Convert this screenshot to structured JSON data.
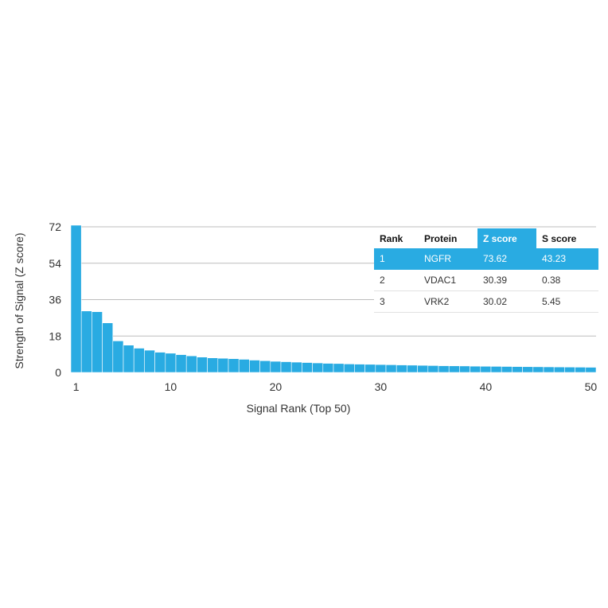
{
  "chart_data": {
    "type": "bar",
    "title": "",
    "xlabel": "Signal Rank (Top 50)",
    "ylabel": "Strength of Signal (Z score)",
    "ylim": [
      0,
      72
    ],
    "yticks": [
      0,
      18,
      36,
      54,
      72
    ],
    "xticks": [
      1,
      10,
      20,
      30,
      40,
      50
    ],
    "grid": true,
    "bar_color": "#29abe2",
    "categories": [
      1,
      2,
      3,
      4,
      5,
      6,
      7,
      8,
      9,
      10,
      11,
      12,
      13,
      14,
      15,
      16,
      17,
      18,
      19,
      20,
      21,
      22,
      23,
      24,
      25,
      26,
      27,
      28,
      29,
      30,
      31,
      32,
      33,
      34,
      35,
      36,
      37,
      38,
      39,
      40,
      41,
      42,
      43,
      44,
      45,
      46,
      47,
      48,
      49,
      50
    ],
    "values": [
      73.62,
      30.39,
      30.02,
      24.5,
      15.6,
      13.5,
      12.0,
      11.0,
      10.0,
      9.5,
      8.8,
      8.2,
      7.6,
      7.2,
      7.0,
      6.8,
      6.5,
      6.1,
      5.8,
      5.5,
      5.3,
      5.1,
      4.9,
      4.7,
      4.5,
      4.4,
      4.2,
      4.1,
      4.0,
      3.9,
      3.8,
      3.7,
      3.6,
      3.5,
      3.4,
      3.3,
      3.25,
      3.2,
      3.1,
      3.05,
      3.0,
      2.95,
      2.9,
      2.85,
      2.8,
      2.75,
      2.7,
      2.65,
      2.6,
      2.55
    ]
  },
  "table": {
    "headers": [
      "Rank",
      "Protein",
      "Z score",
      "S score"
    ],
    "rows": [
      [
        "1",
        "NGFR",
        "73.62",
        "43.23"
      ],
      [
        "2",
        "VDAC1",
        "30.39",
        "0.38"
      ],
      [
        "3",
        "VRK2",
        "30.02",
        "5.45"
      ]
    ],
    "highlight_color": "#29abe2"
  }
}
